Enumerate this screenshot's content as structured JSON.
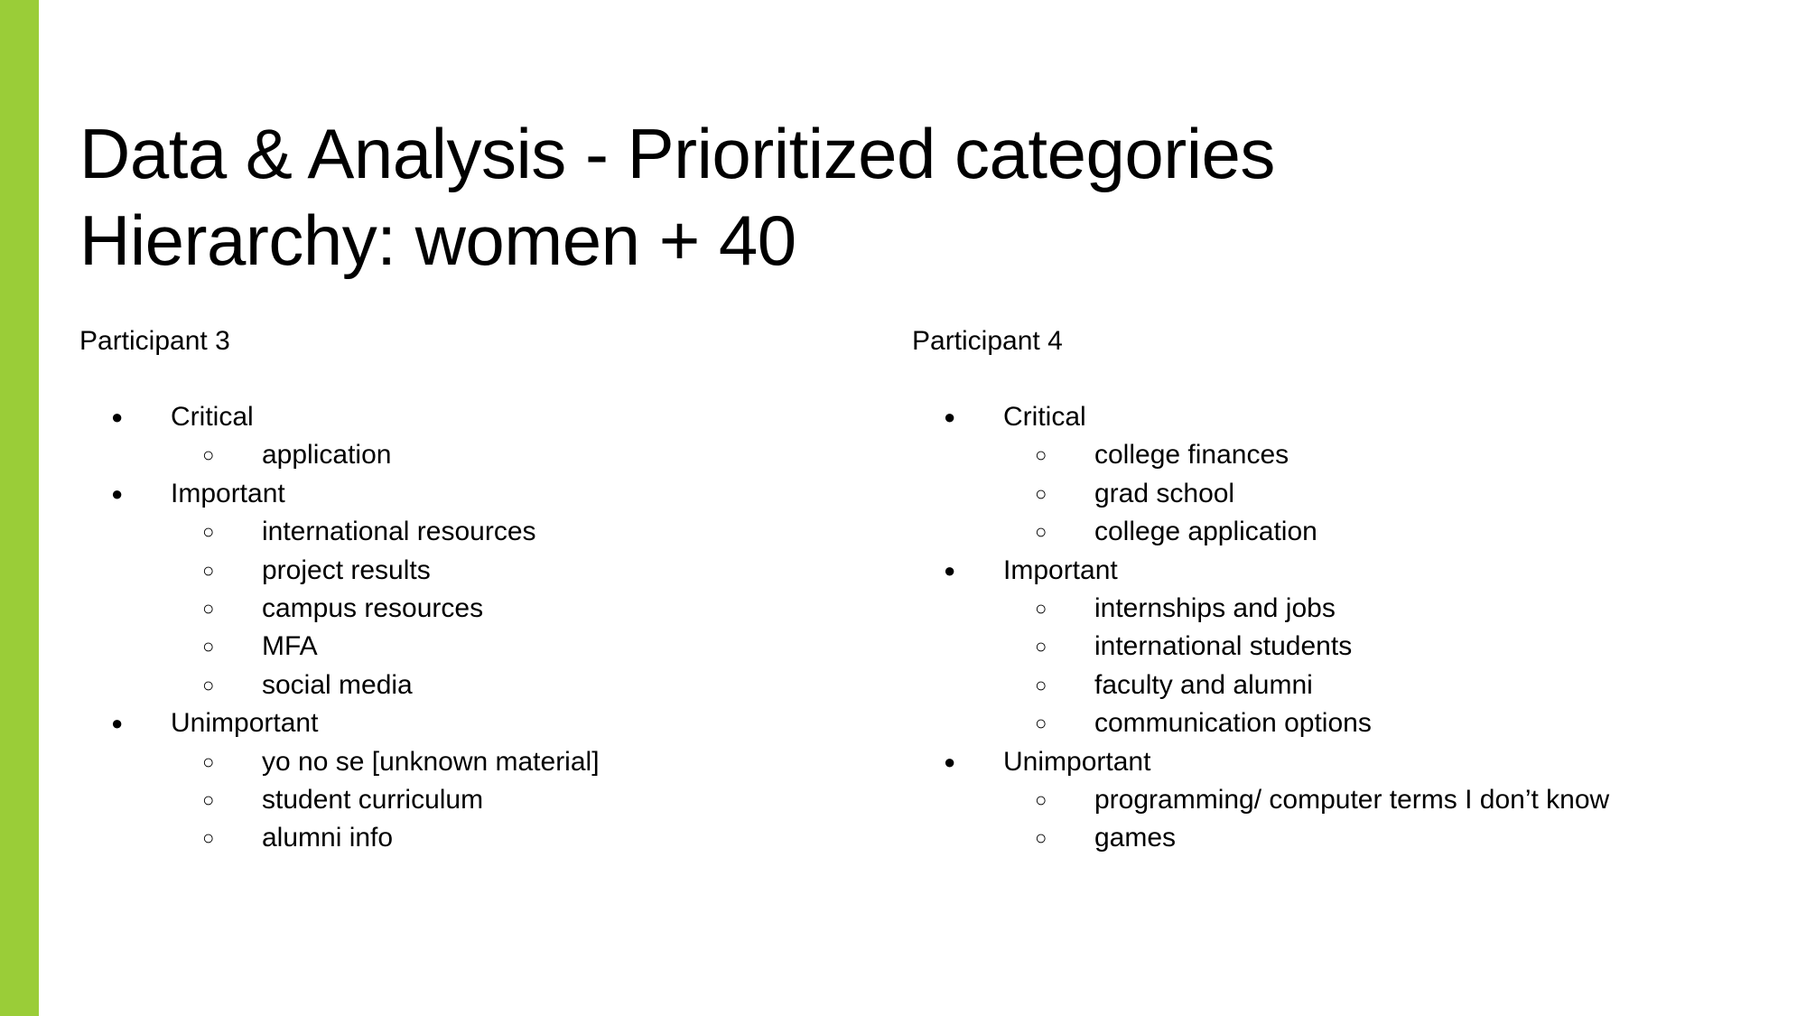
{
  "slide": {
    "title_line1": "Data & Analysis - Prioritized categories",
    "title_line2": "Hierarchy: women + 40",
    "accent_color": "#9acd38"
  },
  "participants": [
    {
      "name": "Participant 3",
      "categories": [
        {
          "label": "Critical",
          "items": [
            "application"
          ]
        },
        {
          "label": "Important",
          "items": [
            "international resources",
            "project results",
            "campus resources",
            "MFA",
            "social media"
          ]
        },
        {
          "label": "Unimportant",
          "items": [
            "yo no se [unknown material]",
            "student curriculum",
            "alumni info"
          ]
        }
      ]
    },
    {
      "name": "Participant 4",
      "categories": [
        {
          "label": "Critical",
          "items": [
            "college finances",
            "grad school",
            "college application"
          ]
        },
        {
          "label": "Important",
          "items": [
            "internships and jobs",
            "international students",
            "faculty and alumni",
            "communication options"
          ]
        },
        {
          "label": "Unimportant",
          "items": [
            "programming/ computer terms I don’t know",
            "games"
          ]
        }
      ]
    }
  ],
  "bullets": {
    "level1": "●",
    "level2": "○"
  }
}
